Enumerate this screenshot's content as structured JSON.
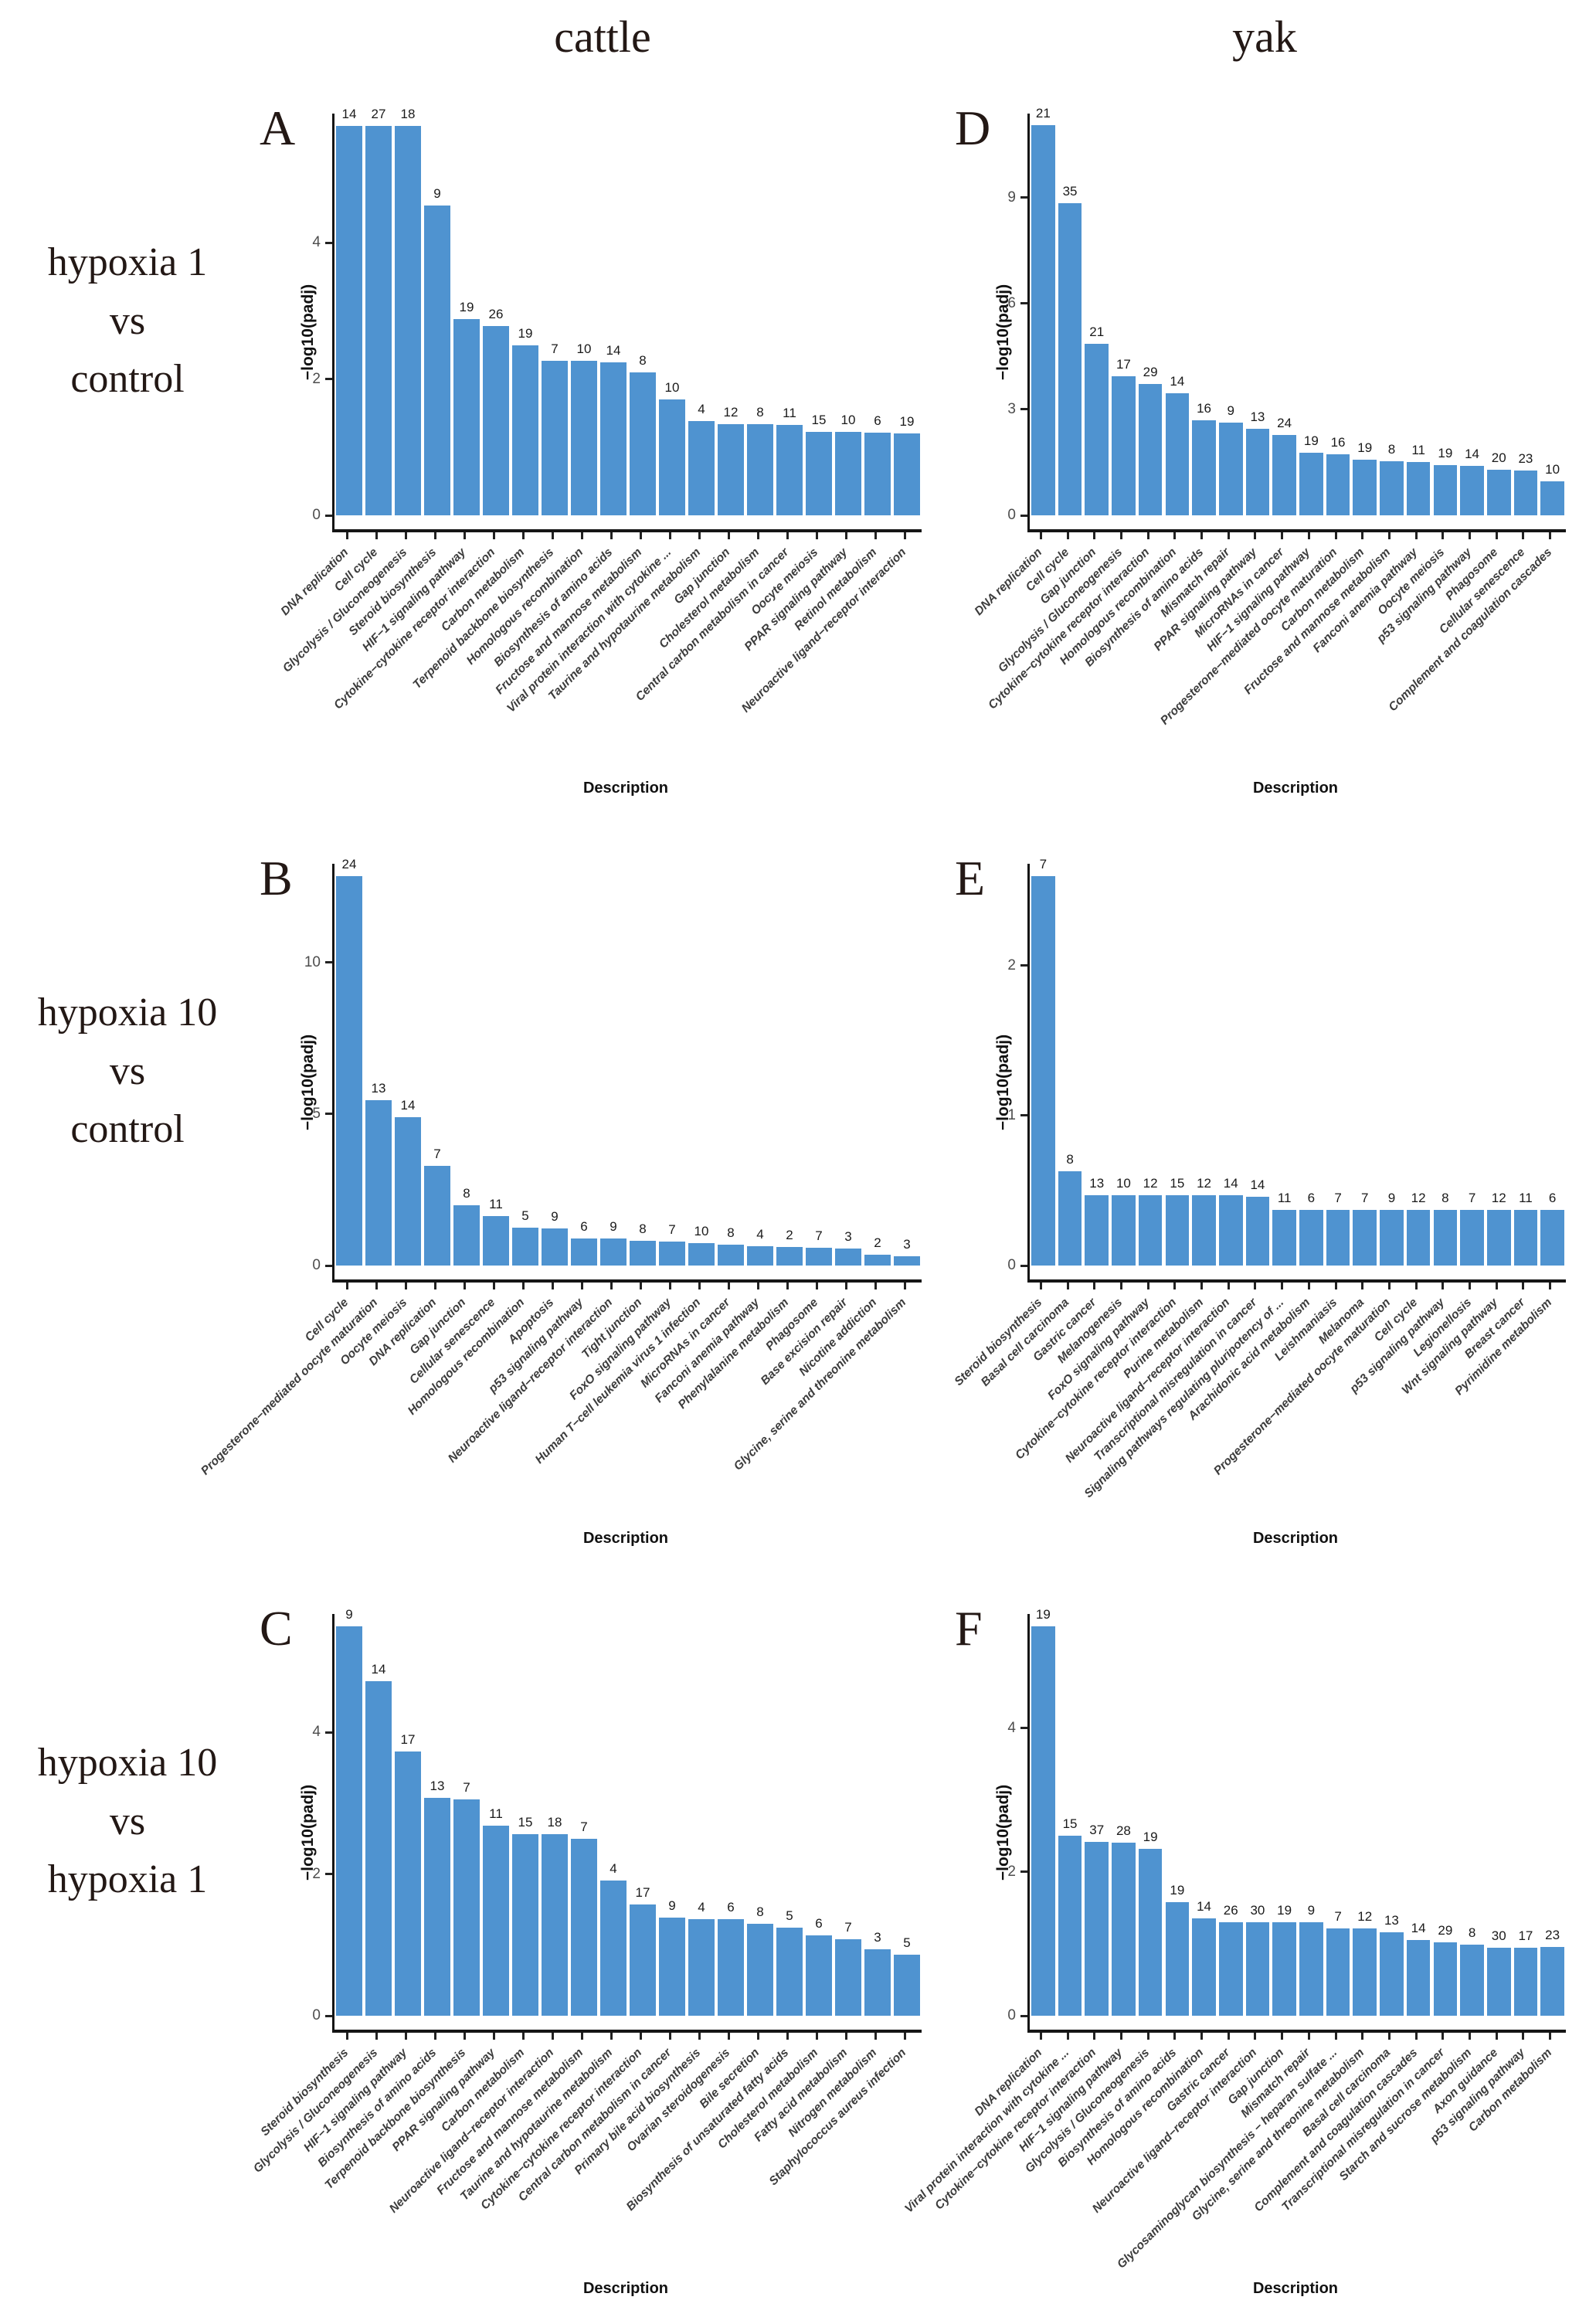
{
  "figure": {
    "column_titles": [
      "cattle",
      "yak"
    ],
    "row_labels": [
      {
        "line1": "hypoxia 1",
        "line2": "vs",
        "line3": "control"
      },
      {
        "line1": "hypoxia 10",
        "line2": "vs",
        "line3": "control"
      },
      {
        "line1": "hypoxia 10",
        "line2": "vs",
        "line3": "hypoxia 1"
      }
    ],
    "panel_letters": [
      "A",
      "B",
      "C",
      "D",
      "E",
      "F"
    ]
  },
  "colors": {
    "bar_fill": "#4f93d0",
    "axis": "#151515",
    "tick_label": "#4d4d4d",
    "count_label": "#1a1a1a",
    "category_label": "#3c3c3c",
    "title_text": "#231815"
  },
  "chart_data": [
    {
      "type": "bar",
      "panel": "A",
      "species": "cattle",
      "comparison": "hypoxia 1 vs control",
      "xlabel": "Description",
      "ylabel": "−log10(padj)",
      "ylim": [
        0,
        5.9
      ],
      "yticks": [
        0,
        2,
        4
      ],
      "grid": false,
      "legend": "none",
      "categories": [
        "DNA replication",
        "Cell cycle",
        "Glycolysis / Gluconeogenesis",
        "Steroid biosynthesis",
        "HIF−1 signaling pathway",
        "Cytokine−cytokine receptor interaction",
        "Carbon metabolism",
        "Terpenoid backbone biosynthesis",
        "Homologous recombination",
        "Biosynthesis of amino acids",
        "Fructose and mannose metabolism",
        "Viral protein interaction with cytokine ...",
        "Taurine and hypotaurine metabolism",
        "Gap junction",
        "Cholesterol metabolism",
        "Central carbon metabolism in cancer",
        "Oocyte meiosis",
        "PPAR signaling pathway",
        "Retinol metabolism",
        "Neuroactive ligand−receptor interaction"
      ],
      "gene_counts": [
        14,
        27,
        18,
        9,
        19,
        26,
        19,
        7,
        10,
        14,
        8,
        10,
        4,
        12,
        8,
        11,
        15,
        10,
        6,
        19
      ],
      "values": [
        5.72,
        5.72,
        5.72,
        4.55,
        2.88,
        2.78,
        2.5,
        2.27,
        2.27,
        2.25,
        2.1,
        1.7,
        1.38,
        1.34,
        1.34,
        1.33,
        1.22,
        1.22,
        1.21,
        1.2
      ]
    },
    {
      "type": "bar",
      "panel": "D",
      "species": "yak",
      "comparison": "hypoxia 1 vs control",
      "xlabel": "Description",
      "ylabel": "−log10(padj)",
      "ylim": [
        0,
        11.38
      ],
      "yticks": [
        0,
        3,
        6,
        9
      ],
      "grid": false,
      "legend": "none",
      "categories": [
        "DNA replication",
        "Cell cycle",
        "Gap junction",
        "Glycolysis / Gluconeogenesis",
        "Cytokine−cytokine receptor interaction",
        "Homologous recombination",
        "Biosynthesis of amino acids",
        "Mismatch repair",
        "PPAR signaling pathway",
        "MicroRNAs in cancer",
        "HIF−1 signaling pathway",
        "Progesterone−mediated oocyte maturation",
        "Carbon metabolism",
        "Fructose and mannose metabolism",
        "Fanconi anemia pathway",
        "Oocyte meiosis",
        "p53 signaling pathway",
        "Phagosome",
        "Cellular senescence",
        "Complement and coagulation cascades"
      ],
      "gene_counts": [
        21,
        35,
        21,
        17,
        29,
        14,
        16,
        9,
        13,
        24,
        19,
        16,
        19,
        8,
        11,
        19,
        14,
        20,
        23,
        10
      ],
      "values": [
        11.05,
        8.85,
        4.85,
        3.95,
        3.72,
        3.45,
        2.7,
        2.63,
        2.45,
        2.28,
        1.78,
        1.73,
        1.58,
        1.54,
        1.51,
        1.42,
        1.4,
        1.29,
        1.28,
        0.97
      ]
    },
    {
      "type": "bar",
      "panel": "B",
      "species": "cattle",
      "comparison": "hypoxia 10 vs control",
      "xlabel": "Description",
      "ylabel": "−log10(padj)",
      "ylim": [
        0,
        13.25
      ],
      "yticks": [
        0,
        5,
        10
      ],
      "grid": false,
      "legend": "none",
      "categories": [
        "Cell cycle",
        "Progesterone−mediated oocyte maturation",
        "Oocyte meiosis",
        "DNA replication",
        "Gap junction",
        "Cellular senescence",
        "Homologous recombination",
        "Apoptosis",
        "p53 signaling pathway",
        "Neuroactive ligand−receptor interaction",
        "Tight junction",
        "FoxO signaling pathway",
        "Human T−cell leukemia virus 1 infection",
        "MicroRNAs in cancer",
        "Fanconi anemia pathway",
        "Phenylalanine metabolism",
        "Phagosome",
        "Base excision repair",
        "Nicotine addiction",
        "Glycine, serine and threonine metabolism"
      ],
      "gene_counts": [
        24,
        13,
        14,
        7,
        8,
        11,
        5,
        9,
        6,
        9,
        8,
        7,
        10,
        8,
        4,
        2,
        7,
        3,
        2,
        3
      ],
      "values": [
        12.85,
        5.45,
        4.9,
        3.28,
        1.98,
        1.64,
        1.26,
        1.23,
        0.88,
        0.88,
        0.82,
        0.78,
        0.74,
        0.68,
        0.64,
        0.6,
        0.59,
        0.57,
        0.36,
        0.3
      ]
    },
    {
      "type": "bar",
      "panel": "E",
      "species": "yak",
      "comparison": "hypoxia 10 vs control",
      "xlabel": "Description",
      "ylabel": "−log10(padj)",
      "ylim": [
        0,
        2.68
      ],
      "yticks": [
        0,
        1,
        2
      ],
      "grid": false,
      "legend": "none",
      "categories": [
        "Steroid biosynthesis",
        "Basal cell carcinoma",
        "Gastric cancer",
        "Melanogenesis",
        "FoxO signaling pathway",
        "Cytokine−cytokine receptor interaction",
        "Purine metabolism",
        "Neuroactive ligand−receptor interaction",
        "Transcriptional misregulation in cancer",
        "Signaling pathways regulating pluripotency of ...",
        "Arachidonic acid metabolism",
        "Leishmaniasis",
        "Melanoma",
        "Progesterone−mediated oocyte maturation",
        "Cell cycle",
        "p53 signaling pathway",
        "Legionellosis",
        "Wnt signaling pathway",
        "Breast cancer",
        "Pyrimidine metabolism"
      ],
      "gene_counts": [
        7,
        8,
        13,
        10,
        12,
        15,
        12,
        14,
        14,
        11,
        6,
        7,
        7,
        9,
        12,
        8,
        7,
        12,
        11,
        6
      ],
      "values": [
        2.6,
        0.63,
        0.47,
        0.47,
        0.47,
        0.47,
        0.47,
        0.47,
        0.46,
        0.37,
        0.37,
        0.37,
        0.37,
        0.37,
        0.37,
        0.37,
        0.37,
        0.37,
        0.37,
        0.37
      ]
    },
    {
      "type": "bar",
      "panel": "C",
      "species": "cattle",
      "comparison": "hypoxia 10 vs hypoxia 1",
      "xlabel": "Description",
      "ylabel": "−log10(padj)",
      "ylim": [
        0,
        5.67
      ],
      "yticks": [
        0,
        2,
        4
      ],
      "grid": false,
      "legend": "none",
      "categories": [
        "Steroid biosynthesis",
        "Glycolysis / Gluconeogenesis",
        "HIF−1 signaling pathway",
        "Biosynthesis of amino acids",
        "Terpenoid backbone biosynthesis",
        "PPAR signaling pathway",
        "Carbon metabolism",
        "Neuroactive ligand−receptor interaction",
        "Fructose and mannose metabolism",
        "Taurine and hypotaurine metabolism",
        "Cytokine−cytokine receptor interaction",
        "Central carbon metabolism in cancer",
        "Primary bile acid biosynthesis",
        "Ovarian steroidogenesis",
        "Bile secretion",
        "Biosynthesis of unsaturated fatty acids",
        "Cholesterol metabolism",
        "Fatty acid metabolism",
        "Nitrogen metabolism",
        "Staphylococcus aureus infection"
      ],
      "gene_counts": [
        9,
        14,
        17,
        13,
        7,
        11,
        15,
        18,
        7,
        4,
        17,
        9,
        4,
        6,
        8,
        5,
        6,
        7,
        3,
        5
      ],
      "values": [
        5.5,
        4.72,
        3.73,
        3.08,
        3.05,
        2.68,
        2.56,
        2.56,
        2.5,
        1.91,
        1.57,
        1.39,
        1.36,
        1.36,
        1.3,
        1.24,
        1.13,
        1.08,
        0.94,
        0.86
      ]
    },
    {
      "type": "bar",
      "panel": "F",
      "species": "yak",
      "comparison": "hypoxia 10 vs hypoxia 1",
      "xlabel": "Description",
      "ylabel": "−log10(padj)",
      "ylim": [
        0,
        5.59
      ],
      "yticks": [
        0,
        2,
        4
      ],
      "grid": false,
      "legend": "none",
      "categories": [
        "DNA replication",
        "Viral protein interaction with cytokine ...",
        "Cytokine−cytokine receptor interaction",
        "HIF−1 signaling pathway",
        "Glycolysis / Gluconeogenesis",
        "Biosynthesis of amino acids",
        "Homologous recombination",
        "Gastric cancer",
        "Neuroactive ligand−receptor interaction",
        "Gap junction",
        "Mismatch repair",
        "Glycosaminoglycan biosynthesis − heparan sulfate ...",
        "Glycine, serine and threonine metabolism",
        "Basal cell carcinoma",
        "Complement and coagulation cascades",
        "Transcriptional misregulation in cancer",
        "Starch and sucrose metabolism",
        "Axon guidance",
        "p53 signaling pathway",
        "Carbon metabolism"
      ],
      "gene_counts": [
        19,
        15,
        37,
        28,
        19,
        19,
        14,
        26,
        30,
        19,
        9,
        7,
        12,
        13,
        14,
        29,
        8,
        30,
        17,
        23
      ],
      "values": [
        5.42,
        2.5,
        2.42,
        2.41,
        2.32,
        1.58,
        1.36,
        1.3,
        1.3,
        1.3,
        1.3,
        1.22,
        1.22,
        1.16,
        1.05,
        1.02,
        0.99,
        0.95,
        0.95,
        0.96
      ]
    }
  ]
}
